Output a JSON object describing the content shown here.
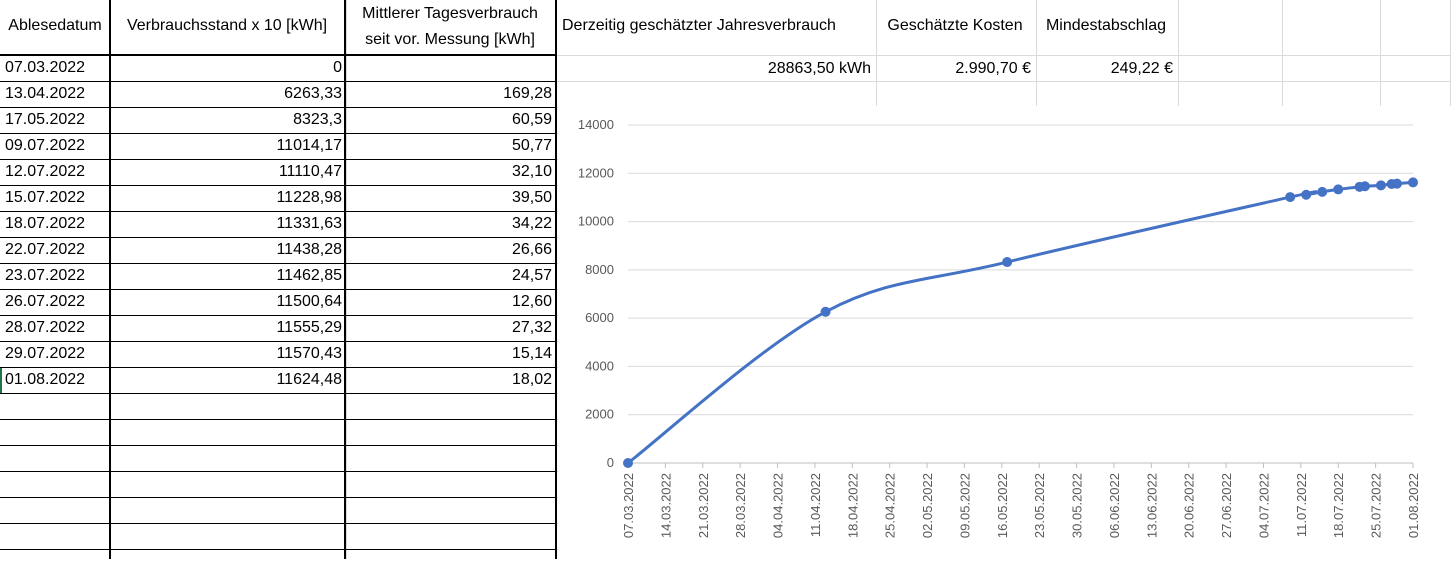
{
  "table": {
    "headers": {
      "date": "Ablesedatum",
      "reading": "Verbrauchsstand x 10 [kWh]",
      "avg_line1": "Mittlerer Tagesverbrauch",
      "avg_line2": "seit vor. Messung [kWh]"
    },
    "rows": [
      {
        "date": "07.03.2022",
        "reading": "0",
        "avg": ""
      },
      {
        "date": "13.04.2022",
        "reading": "6263,33",
        "avg": "169,28"
      },
      {
        "date": "17.05.2022",
        "reading": "8323,3",
        "avg": "60,59"
      },
      {
        "date": "09.07.2022",
        "reading": "11014,17",
        "avg": "50,77"
      },
      {
        "date": "12.07.2022",
        "reading": "11110,47",
        "avg": "32,10"
      },
      {
        "date": "15.07.2022",
        "reading": "11228,98",
        "avg": "39,50"
      },
      {
        "date": "18.07.2022",
        "reading": "11331,63",
        "avg": "34,22"
      },
      {
        "date": "22.07.2022",
        "reading": "11438,28",
        "avg": "26,66"
      },
      {
        "date": "23.07.2022",
        "reading": "11462,85",
        "avg": "24,57"
      },
      {
        "date": "26.07.2022",
        "reading": "11500,64",
        "avg": "12,60"
      },
      {
        "date": "28.07.2022",
        "reading": "11555,29",
        "avg": "27,32"
      },
      {
        "date": "29.07.2022",
        "reading": "11570,43",
        "avg": "15,14"
      },
      {
        "date": "01.08.2022",
        "reading": "11624,48",
        "avg": "18,02"
      }
    ]
  },
  "summary": {
    "yearly_label": "Derzeitig geschätzter Jahresverbrauch",
    "cost_label": "Geschätzte Kosten",
    "min_label": "Mindestabschlag",
    "yearly_value": "28863,50 kWh",
    "cost_value": "2.990,70 €",
    "min_value": "249,22 €"
  },
  "chart_data": {
    "type": "line",
    "x_labels": [
      "07.03.2022",
      "14.03.2022",
      "21.03.2022",
      "28.03.2022",
      "04.04.2022",
      "11.04.2022",
      "18.04.2022",
      "25.04.2022",
      "02.05.2022",
      "09.05.2022",
      "16.05.2022",
      "23.05.2022",
      "30.05.2022",
      "06.06.2022",
      "13.06.2022",
      "20.06.2022",
      "27.06.2022",
      "04.07.2022",
      "11.07.2022",
      "18.07.2022",
      "25.07.2022",
      "01.08.2022"
    ],
    "y_ticks": [
      "0",
      "2000",
      "4000",
      "6000",
      "8000",
      "10000",
      "12000",
      "14000"
    ],
    "ylim": [
      0,
      14000
    ],
    "series": [
      {
        "color": "#4472c4",
        "points": [
          {
            "x": "07.03.2022",
            "y": 0
          },
          {
            "x": "13.04.2022",
            "y": 6263.33
          },
          {
            "x": "17.05.2022",
            "y": 8323.3
          },
          {
            "x": "09.07.2022",
            "y": 11014.17
          },
          {
            "x": "12.07.2022",
            "y": 11110.47
          },
          {
            "x": "15.07.2022",
            "y": 11228.98
          },
          {
            "x": "18.07.2022",
            "y": 11331.63
          },
          {
            "x": "22.07.2022",
            "y": 11438.28
          },
          {
            "x": "23.07.2022",
            "y": 11462.85
          },
          {
            "x": "26.07.2022",
            "y": 11500.64
          },
          {
            "x": "28.07.2022",
            "y": 11555.29
          },
          {
            "x": "29.07.2022",
            "y": 11570.43
          },
          {
            "x": "01.08.2022",
            "y": 11624.48
          }
        ]
      }
    ],
    "grid": true,
    "smooth": true
  }
}
